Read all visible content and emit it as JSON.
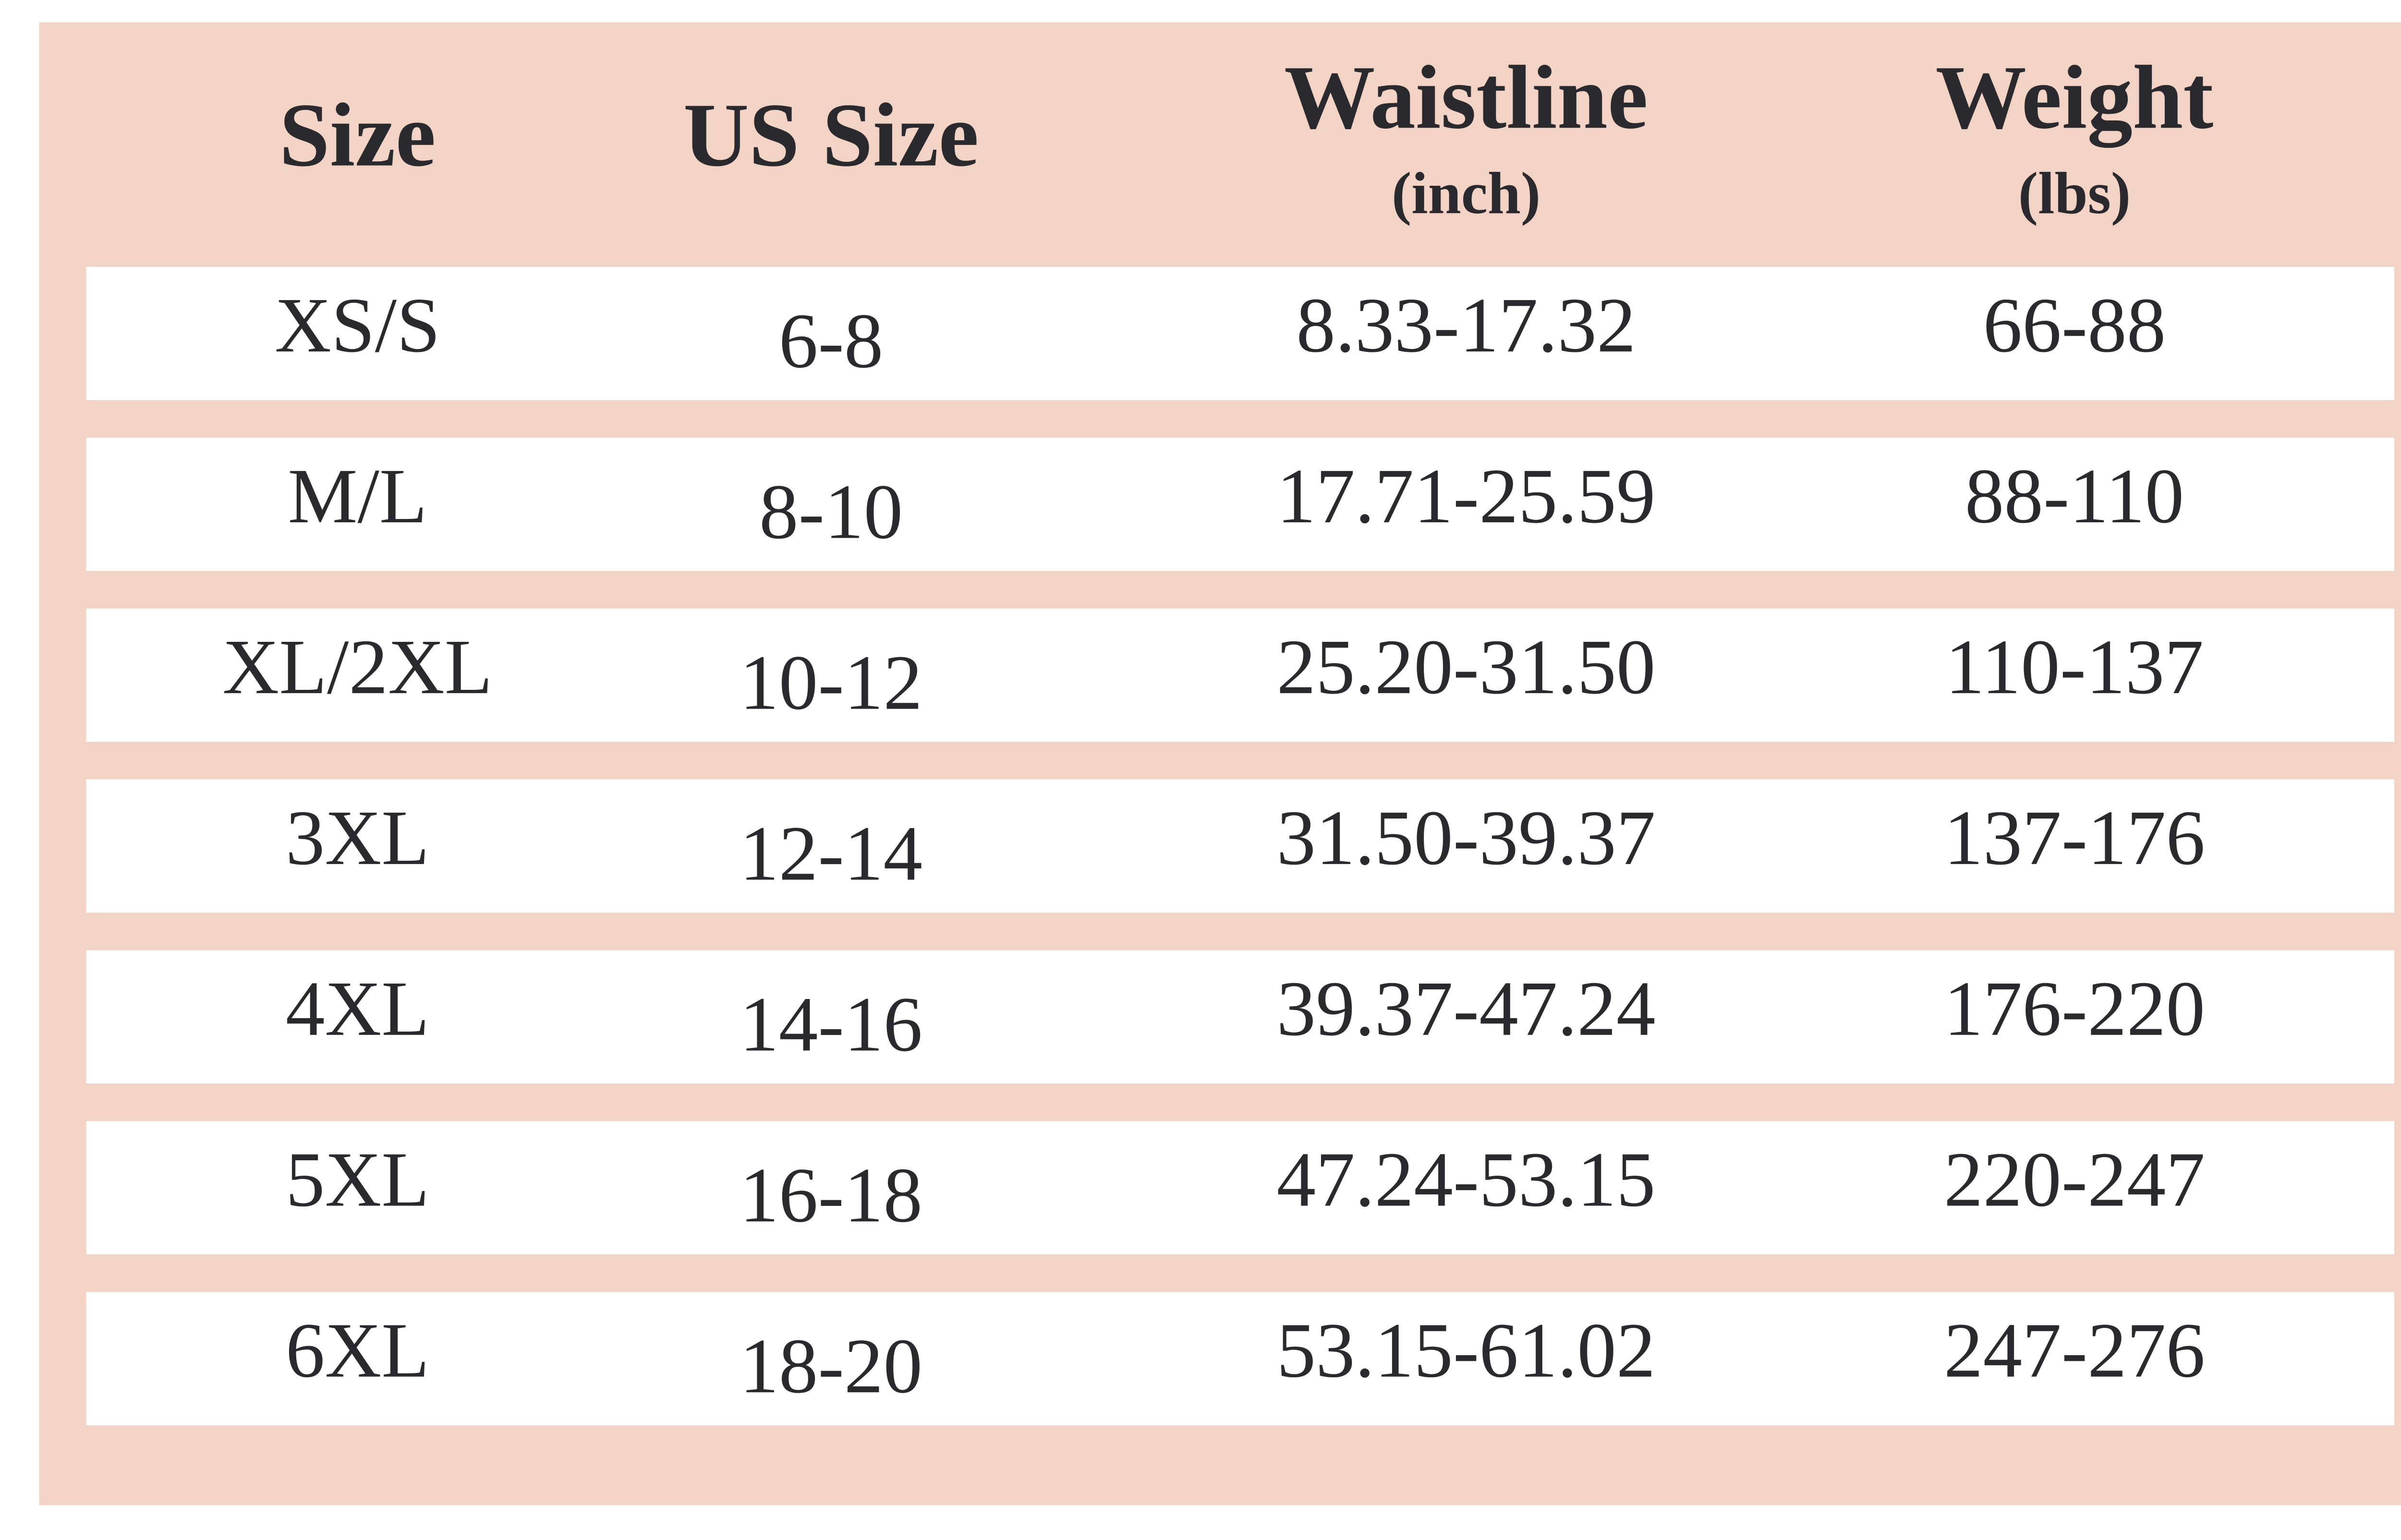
{
  "table": {
    "columns": [
      {
        "title": "Size"
      },
      {
        "title": "US Size"
      },
      {
        "title": "Waistline",
        "unit": "(inch)"
      },
      {
        "title": "Weight",
        "unit": "(lbs)"
      }
    ],
    "rows": [
      [
        "XS/S",
        "6-8",
        "8.33-17.32",
        "66-88"
      ],
      [
        "M/L",
        "8-10",
        "17.71-25.59",
        "88-110"
      ],
      [
        "XL/2XL",
        "10-12",
        "25.20-31.50",
        "110-137"
      ],
      [
        "3XL",
        "12-14",
        "31.50-39.37",
        "137-176"
      ],
      [
        "4XL",
        "14-16",
        "39.37-47.24",
        "176-220"
      ],
      [
        "5XL",
        "16-18",
        "47.24-53.15",
        "220-247"
      ],
      [
        "6XL",
        "18-20",
        "53.15-61.02",
        "247-276"
      ]
    ]
  }
}
